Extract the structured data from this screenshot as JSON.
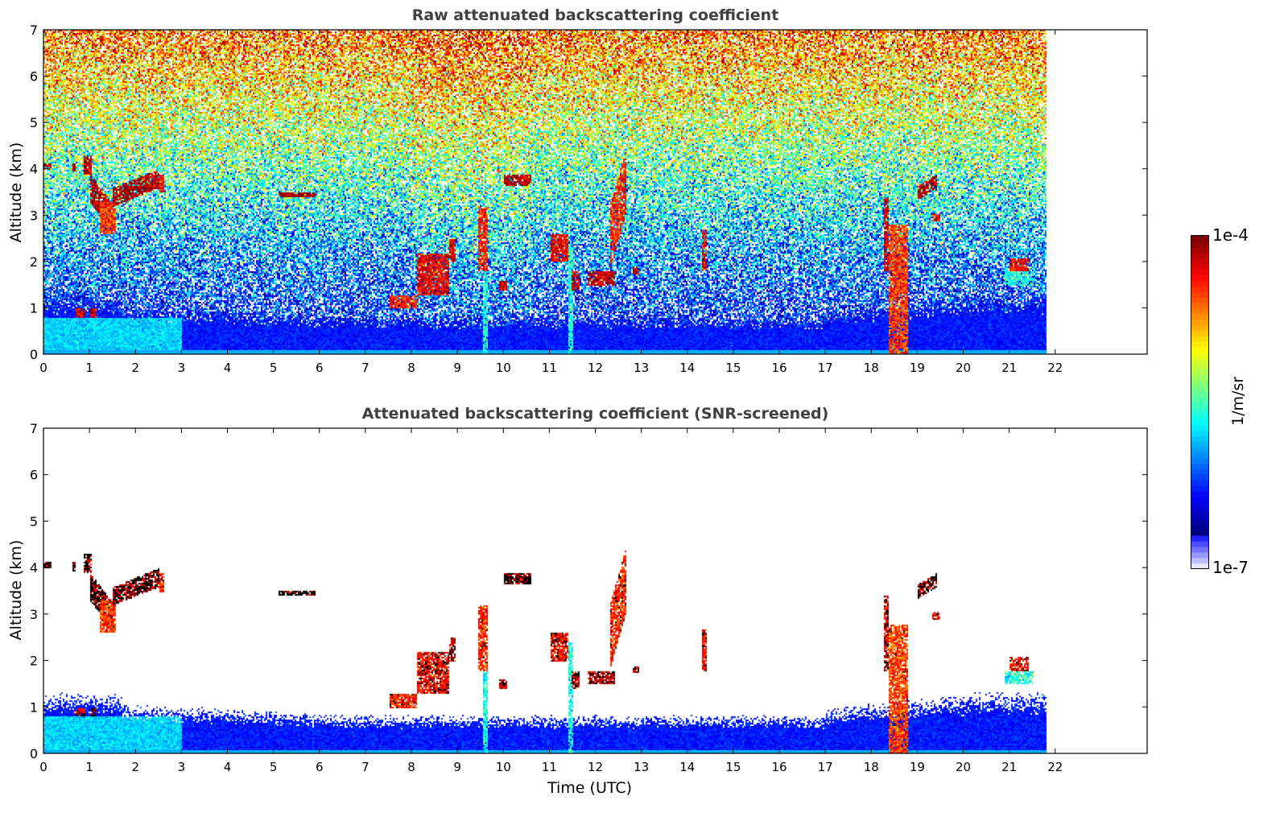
{
  "chart_data": [
    {
      "type": "heatmap",
      "title": "Raw attenuated backscattering coefficient",
      "xlabel": "",
      "ylabel": "Altitude (km)",
      "xlim": [
        0,
        24
      ],
      "ylim": [
        0,
        7
      ],
      "xticks": [
        "0",
        "1",
        "2",
        "3",
        "4",
        "5",
        "6",
        "7",
        "8",
        "9",
        "10",
        "11",
        "12",
        "13",
        "14",
        "15",
        "16",
        "17",
        "18",
        "19",
        "20",
        "21",
        "22"
      ],
      "yticks": [
        "0",
        "1",
        "2",
        "3",
        "4",
        "5",
        "6",
        "7"
      ],
      "data_end_time": 21.8,
      "screened": false
    },
    {
      "type": "heatmap",
      "title": "Attenuated backscattering coefficient (SNR-screened)",
      "xlabel": "Time (UTC)",
      "ylabel": "Altitude (km)",
      "xlim": [
        0,
        24
      ],
      "ylim": [
        0,
        7
      ],
      "xticks": [
        "0",
        "1",
        "2",
        "3",
        "4",
        "5",
        "6",
        "7",
        "8",
        "9",
        "10",
        "11",
        "12",
        "13",
        "14",
        "15",
        "16",
        "17",
        "18",
        "19",
        "20",
        "21",
        "22"
      ],
      "yticks": [
        "0",
        "1",
        "2",
        "3",
        "4",
        "5",
        "6",
        "7"
      ],
      "data_end_time": 21.8,
      "screened": true
    }
  ],
  "colorbar": {
    "label": "1/m/sr",
    "min_label": "1e-7",
    "max_label": "1e-4",
    "scale": "log",
    "range": [
      1e-07,
      0.0001
    ]
  },
  "features": [
    {
      "t0": 0.0,
      "t1": 0.15,
      "z0": 4.0,
      "z1": 4.15,
      "v": -4.1
    },
    {
      "t0": 0.6,
      "t1": 0.7,
      "z0": 3.95,
      "z1": 4.15,
      "v": -4.1
    },
    {
      "t0": 0.85,
      "t1": 1.05,
      "z0": 3.9,
      "z1": 4.3,
      "v": -4.1
    },
    {
      "t0": 1.0,
      "t1": 1.5,
      "z0": 3.3,
      "z1": 3.9,
      "v": -4.1,
      "slope": -1.3
    },
    {
      "t0": 1.2,
      "t1": 1.55,
      "z0": 2.6,
      "z1": 3.3,
      "v": -4.5
    },
    {
      "t0": 1.5,
      "t1": 2.5,
      "z0": 3.2,
      "z1": 3.6,
      "v": -4.1,
      "slope": 0.4
    },
    {
      "t0": 2.5,
      "t1": 2.6,
      "z0": 3.5,
      "z1": 3.9,
      "v": -4.3
    },
    {
      "t0": 5.1,
      "t1": 5.9,
      "z0": 3.4,
      "z1": 3.52,
      "v": -4.05
    },
    {
      "t0": 0.7,
      "t1": 0.9,
      "z0": 0.8,
      "z1": 1.0,
      "v": -4.2
    },
    {
      "t0": 1.0,
      "t1": 1.15,
      "z0": 0.8,
      "z1": 1.0,
      "v": -4.2
    },
    {
      "t0": 7.5,
      "t1": 8.1,
      "z0": 1.0,
      "z1": 1.3,
      "v": -4.4
    },
    {
      "t0": 8.1,
      "t1": 8.8,
      "z0": 1.3,
      "z1": 2.2,
      "v": -4.3
    },
    {
      "t0": 8.8,
      "t1": 8.95,
      "z0": 2.0,
      "z1": 2.5,
      "v": -4.2
    },
    {
      "t0": 9.45,
      "t1": 9.65,
      "z0": 1.8,
      "z1": 3.2,
      "v": -4.4
    },
    {
      "t0": 9.55,
      "t1": 9.65,
      "z0": 0.0,
      "z1": 1.8,
      "v": -5.6
    },
    {
      "t0": 9.9,
      "t1": 10.05,
      "z0": 1.4,
      "z1": 1.6,
      "v": -4.2
    },
    {
      "t0": 10.0,
      "t1": 10.6,
      "z0": 3.65,
      "z1": 3.9,
      "v": -4.1
    },
    {
      "t0": 11.0,
      "t1": 11.4,
      "z0": 2.0,
      "z1": 2.6,
      "v": -4.3
    },
    {
      "t0": 11.4,
      "t1": 11.5,
      "z0": 0.0,
      "z1": 2.4,
      "v": -5.6
    },
    {
      "t0": 11.45,
      "t1": 11.65,
      "z0": 1.4,
      "z1": 1.8,
      "v": -4.2
    },
    {
      "t0": 11.8,
      "t1": 12.4,
      "z0": 1.5,
      "z1": 1.8,
      "v": -4.2
    },
    {
      "t0": 12.3,
      "t1": 12.65,
      "z0": 1.8,
      "z1": 3.2,
      "v": -4.4,
      "slope": 3.5
    },
    {
      "t0": 12.8,
      "t1": 12.95,
      "z0": 1.75,
      "z1": 1.9,
      "v": -4.2
    },
    {
      "t0": 14.3,
      "t1": 14.4,
      "z0": 1.8,
      "z1": 2.7,
      "v": -4.3
    },
    {
      "t0": 18.25,
      "t1": 18.35,
      "z0": 1.8,
      "z1": 3.4,
      "v": -4.2
    },
    {
      "t0": 18.35,
      "t1": 18.8,
      "z0": 0.0,
      "z1": 2.8,
      "v": -4.5
    },
    {
      "t0": 19.0,
      "t1": 19.4,
      "z0": 3.35,
      "z1": 3.65,
      "v": -4.1,
      "slope": 0.6
    },
    {
      "t0": 19.3,
      "t1": 19.5,
      "z0": 2.9,
      "z1": 3.05,
      "v": -4.3
    },
    {
      "t0": 20.9,
      "t1": 21.5,
      "z0": 1.5,
      "z1": 1.8,
      "v": -5.6
    },
    {
      "t0": 21.0,
      "t1": 21.4,
      "z0": 1.8,
      "z1": 2.1,
      "v": -4.3
    }
  ]
}
